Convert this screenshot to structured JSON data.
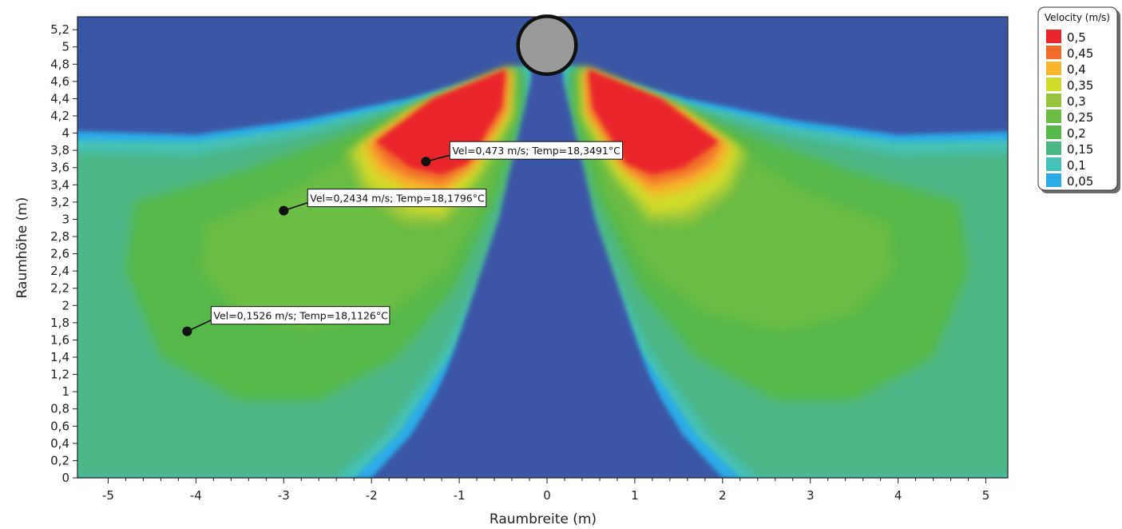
{
  "chart_data": {
    "type": "heatmap",
    "title": "",
    "xlabel": "Raumbreite (m)",
    "ylabel": "Raumhöhe (m)",
    "xlim": [
      -5.35,
      5.25
    ],
    "ylim": [
      0,
      5.35
    ],
    "x_ticks": [
      "-5",
      "-4",
      "-3",
      "-2",
      "-1",
      "0",
      "1",
      "2",
      "3",
      "4",
      "5"
    ],
    "y_ticks": [
      "0",
      "0,2",
      "0,4",
      "0,6",
      "0,8",
      "1",
      "1,2",
      "1,4",
      "1,6",
      "1,8",
      "2",
      "2,2",
      "2,4",
      "2,6",
      "2,8",
      "3",
      "3,2",
      "3,4",
      "3,6",
      "3,8",
      "4",
      "4,2",
      "4,4",
      "4,6",
      "4,8",
      "5",
      "5,2"
    ],
    "source": {
      "x": 0,
      "y": 5.02,
      "radius_m": 0.33
    },
    "legend": {
      "title": "Velocity (m/s)",
      "position": "top-right",
      "entries": [
        {
          "label": "0,5",
          "color": "#e8262a"
        },
        {
          "label": "0,45",
          "color": "#f26b2a"
        },
        {
          "label": "0,4",
          "color": "#f8b62c"
        },
        {
          "label": "0,35",
          "color": "#cfdc2a"
        },
        {
          "label": "0,3",
          "color": "#97c43a"
        },
        {
          "label": "0,25",
          "color": "#6bbd45"
        },
        {
          "label": "0,2",
          "color": "#55b848"
        },
        {
          "label": "0,15",
          "color": "#4db686"
        },
        {
          "label": "0,1",
          "color": "#45c2b8"
        },
        {
          "label": "0,05",
          "color": "#2aace6"
        }
      ]
    },
    "background_color": "#3a57a6",
    "annotations": [
      {
        "x": -1.38,
        "y": 3.67,
        "text": "Vel=0,473 m/s; Temp=18,3491°C"
      },
      {
        "x": -3.0,
        "y": 3.1,
        "text": "Vel=0,2434 m/s; Temp=18,1796°C"
      },
      {
        "x": -4.1,
        "y": 1.7,
        "text": "Vel=0,1526 m/s; Temp=18,1126°C"
      }
    ]
  }
}
